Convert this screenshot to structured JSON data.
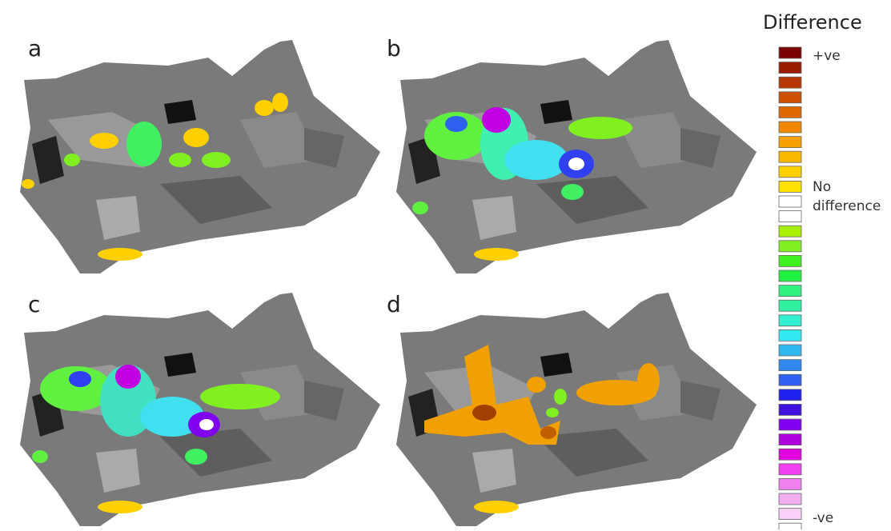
{
  "panels": [
    {
      "label": "a"
    },
    {
      "label": "b"
    },
    {
      "label": "c"
    },
    {
      "label": "d"
    }
  ],
  "legend": {
    "title": "Difference",
    "swatches": [
      "#7a0000",
      "#9b1c00",
      "#b53800",
      "#cc5000",
      "#e06800",
      "#f08800",
      "#f8a000",
      "#fbb800",
      "#fdd000",
      "#ffe000",
      "#ffffff",
      "#ffffff",
      "#a8f000",
      "#80f020",
      "#40f020",
      "#20f040",
      "#30f080",
      "#30f0a0",
      "#30f0d0",
      "#30e8f0",
      "#30b8f0",
      "#3088f0",
      "#3060f0",
      "#2020f0",
      "#4010e0",
      "#8000f0",
      "#b000e0",
      "#e000e0",
      "#f040f0",
      "#f080f0",
      "#f0b0f0",
      "#f8d0f8",
      "#ffffff"
    ],
    "positive": "+ve",
    "none": "No difference",
    "negative": "-ve"
  }
}
